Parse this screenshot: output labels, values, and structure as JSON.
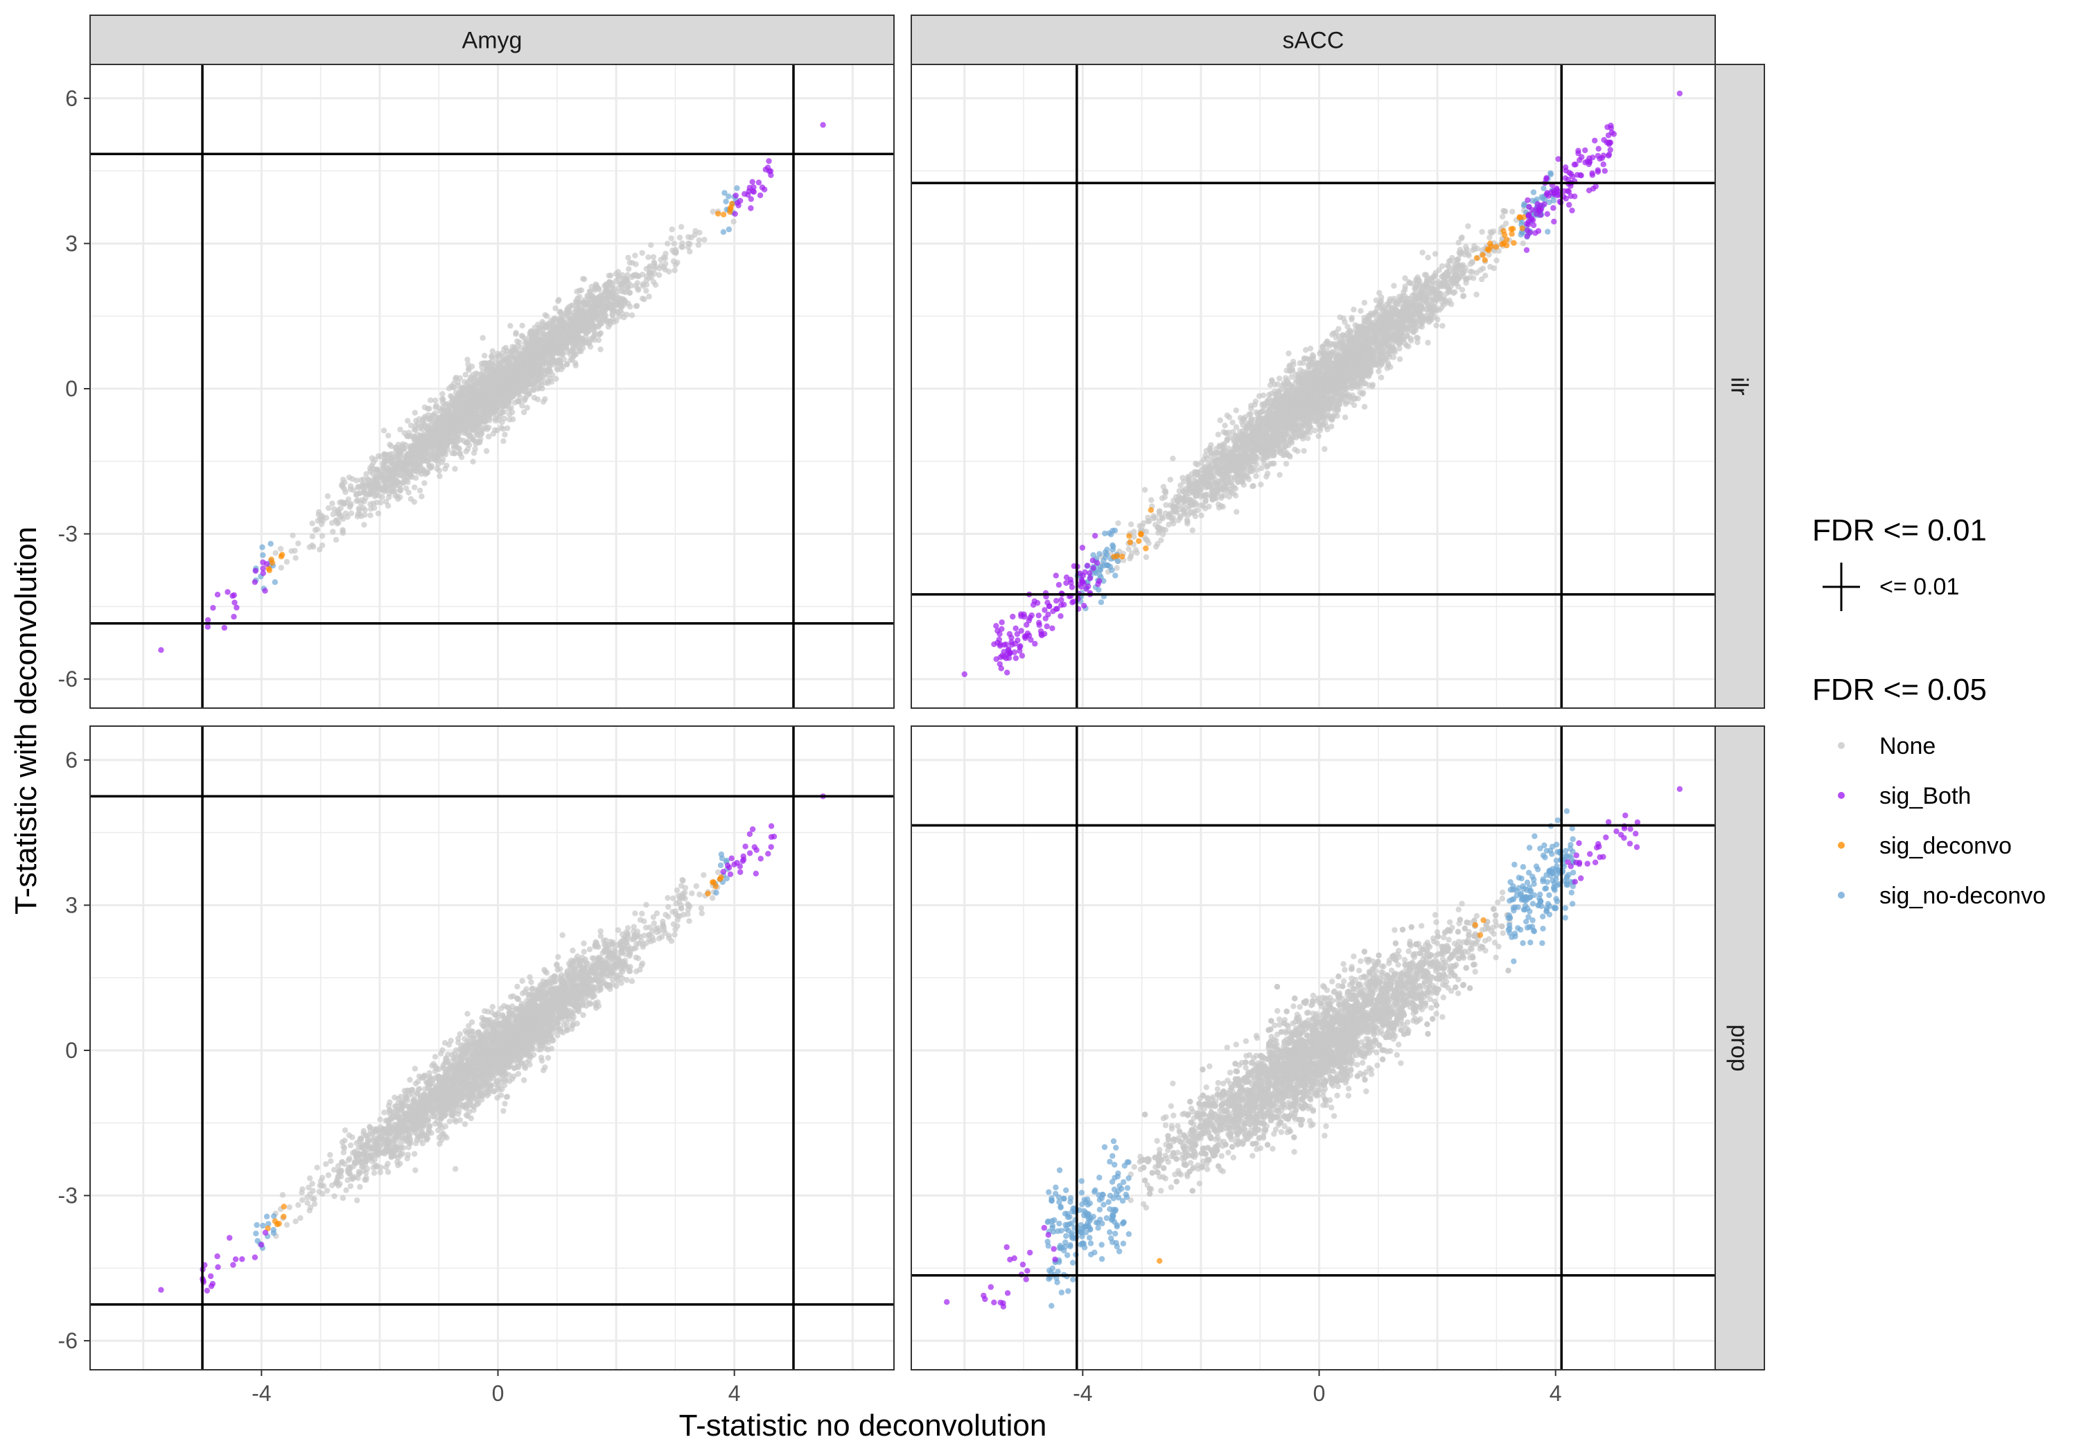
{
  "chart_data": {
    "type": "scatter",
    "xlabel": "T-statistic no deconvolution",
    "ylabel": "T-statistic with deconvolution",
    "col_facets": [
      "Amyg",
      "sACC"
    ],
    "row_facets": [
      "ilr",
      "prop"
    ],
    "x_ticks": [
      "-4",
      "0",
      "4"
    ],
    "y_ticks": [
      "6",
      "3",
      "0",
      "-3",
      "-6"
    ],
    "panels": [
      {
        "col": "Amyg",
        "row": "ilr",
        "xlim": [
          -6.9,
          6.7
        ],
        "ylim": [
          -6.6,
          6.7
        ],
        "fdr01_threshold_x": 5.0,
        "fdr01_threshold_y": 4.85,
        "max_point": [
          5.5,
          5.45
        ],
        "min_point": [
          -5.7,
          -5.4
        ],
        "none_band": [
          -3.9,
          4.0
        ],
        "slope": 0.95,
        "spread": 0.35,
        "n_none": 3200
      },
      {
        "col": "sACC",
        "row": "ilr",
        "xlim": [
          -6.9,
          6.7
        ],
        "ylim": [
          -6.6,
          6.7
        ],
        "fdr01_threshold_x": 4.1,
        "fdr01_threshold_y": 4.25,
        "max_point": [
          6.1,
          6.1
        ],
        "min_point": [
          -6.0,
          -5.9
        ],
        "none_band": [
          -3.7,
          3.5
        ],
        "slope": 1.0,
        "spread": 0.4,
        "n_none": 3400
      },
      {
        "col": "Amyg",
        "row": "prop",
        "xlim": [
          -6.9,
          6.7
        ],
        "ylim": [
          -6.6,
          6.7
        ],
        "fdr01_threshold_x": 5.0,
        "fdr01_threshold_y": 5.25,
        "max_point": [
          5.5,
          5.25
        ],
        "min_point": [
          -5.7,
          -4.95
        ],
        "none_band": [
          -3.9,
          3.8
        ],
        "slope": 0.95,
        "spread": 0.4,
        "n_none": 3200
      },
      {
        "col": "sACC",
        "row": "prop",
        "xlim": [
          -6.9,
          6.7
        ],
        "ylim": [
          -6.6,
          6.7
        ],
        "fdr01_threshold_x": 4.1,
        "fdr01_threshold_y": 4.65,
        "max_point": [
          6.1,
          5.4
        ],
        "min_point": [
          -6.3,
          -5.2
        ],
        "none_band": [
          -3.3,
          3.3
        ],
        "slope": 0.85,
        "spread": 0.55,
        "n_none": 3600
      }
    ],
    "series": [
      {
        "name": "None",
        "color": "#c8c8c8"
      },
      {
        "name": "sig_Both",
        "color": "#a020f0"
      },
      {
        "name": "sig_deconvo",
        "color": "#ff8c00"
      },
      {
        "name": "sig_no-deconvo",
        "color": "#6fa8d6"
      }
    ],
    "legend": {
      "position": "right",
      "fdr01_title": "FDR <= 0.01",
      "fdr01_label": "<= 0.01",
      "fdr05_title": "FDR <= 0.05"
    },
    "grid": true,
    "theme": "bw"
  }
}
